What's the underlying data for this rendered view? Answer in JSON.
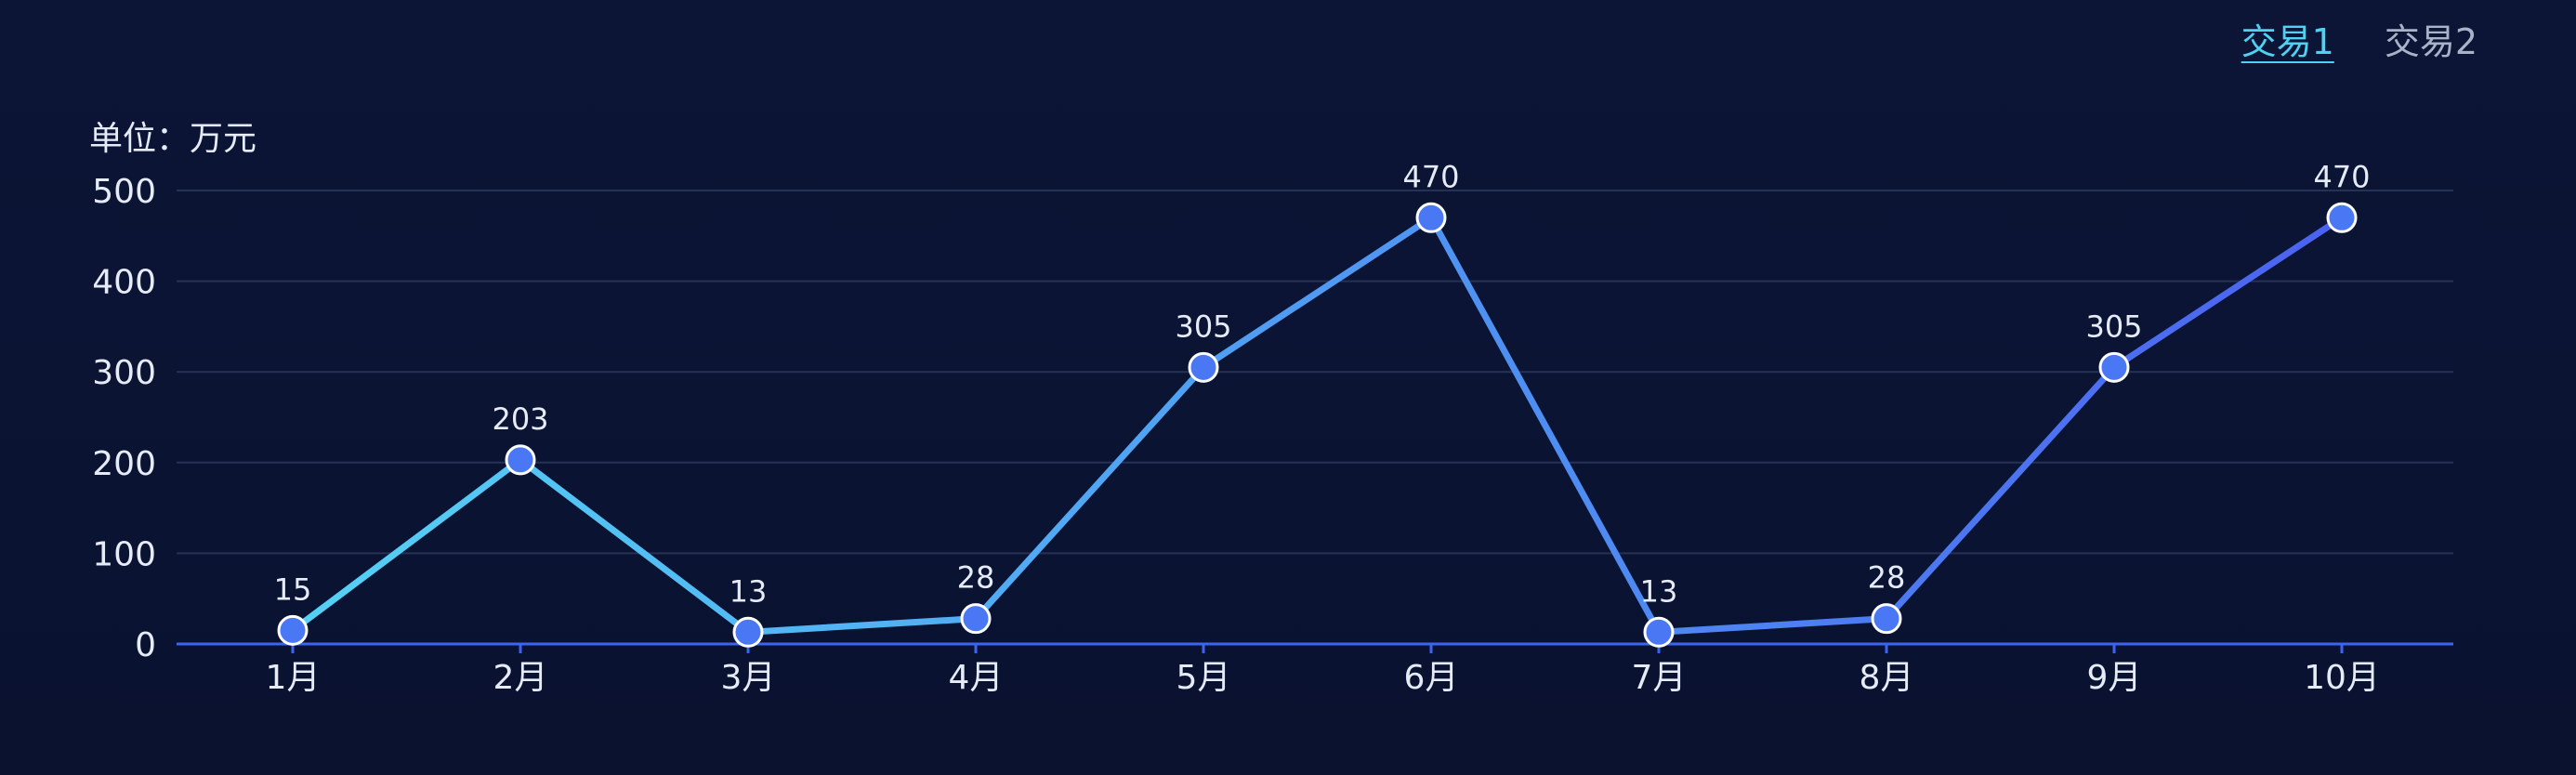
{
  "tabs": [
    {
      "label": "交易1",
      "active": true
    },
    {
      "label": "交易2",
      "active": false
    }
  ],
  "unit_label": "单位：万元",
  "colors": {
    "background": "#0b1433",
    "line_start": "#55d8f5",
    "line_end": "#4a5cf0",
    "point_fill": "#4a78f5",
    "point_stroke": "#ffffff",
    "grid": "#263255",
    "axis": "#3b64f0",
    "text": "#e6ecf7",
    "tab_active": "#4fd2f2",
    "tab_inactive": "#a9b3c8"
  },
  "chart_data": {
    "type": "line",
    "title": "",
    "xlabel": "",
    "ylabel": "",
    "categories": [
      "1月",
      "2月",
      "3月",
      "4月",
      "5月",
      "6月",
      "7月",
      "8月",
      "9月",
      "10月"
    ],
    "values": [
      15,
      203,
      13,
      28,
      305,
      470,
      13,
      28,
      305,
      470
    ],
    "ylim": [
      0,
      500
    ],
    "yticks": [
      0,
      100,
      200,
      300,
      400,
      500
    ],
    "grid": true,
    "data_labels": true,
    "line_gradient": true
  }
}
